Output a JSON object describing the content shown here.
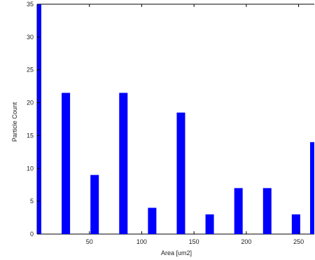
{
  "chart_data": {
    "type": "bar",
    "xlabel": "Area [um2]",
    "ylabel": "Particle Count",
    "xlim": [
      0,
      265
    ],
    "ylim": [
      0,
      35
    ],
    "bar_color": "#0000ff",
    "x": [
      0,
      27.5,
      55,
      82.5,
      110,
      137.5,
      165,
      192.5,
      220,
      247.5,
      265
    ],
    "values": [
      35,
      21.5,
      9,
      21.5,
      4,
      18.5,
      3,
      7,
      7,
      3,
      14
    ],
    "xticks": [
      {
        "value": 50,
        "label": "50"
      },
      {
        "value": 100,
        "label": "100"
      },
      {
        "value": 150,
        "label": "150"
      },
      {
        "value": 200,
        "label": "200"
      },
      {
        "value": 250,
        "label": "250"
      }
    ],
    "yticks": [
      {
        "value": 0,
        "label": "0"
      },
      {
        "value": 5,
        "label": "5"
      },
      {
        "value": 10,
        "label": "10"
      },
      {
        "value": 15,
        "label": "15"
      },
      {
        "value": 20,
        "label": "20"
      },
      {
        "value": 25,
        "label": "25"
      },
      {
        "value": 30,
        "label": "30"
      },
      {
        "value": 35,
        "label": "35"
      }
    ],
    "grid": false
  }
}
